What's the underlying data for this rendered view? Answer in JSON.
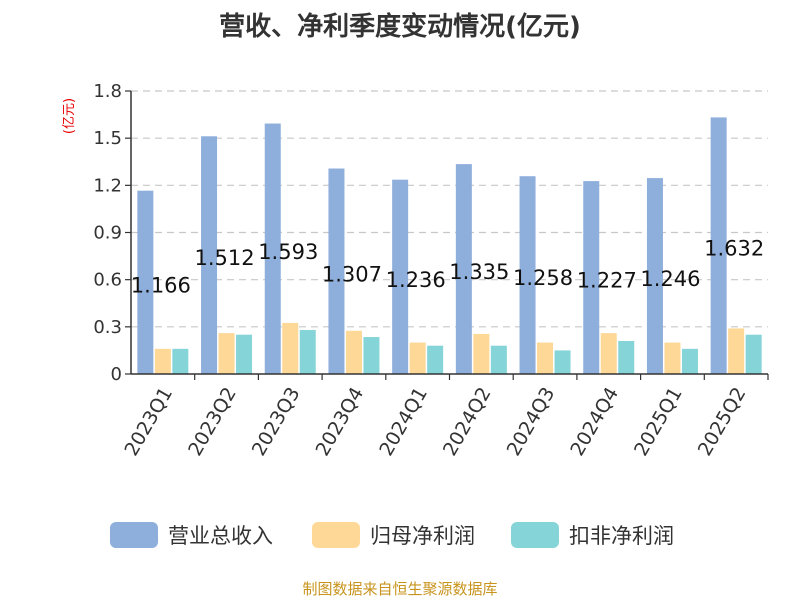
{
  "chart_data": {
    "type": "bar",
    "title": "营收、净利季度变动情况(亿元)",
    "unit_label": "(亿元)",
    "categories": [
      "2023Q1",
      "2023Q2",
      "2023Q3",
      "2023Q4",
      "2024Q1",
      "2024Q2",
      "2024Q3",
      "2024Q4",
      "2025Q1",
      "2025Q2"
    ],
    "series": [
      {
        "name": "营业总收入",
        "color": "#8eaedc",
        "values": [
          1.166,
          1.512,
          1.593,
          1.307,
          1.236,
          1.335,
          1.258,
          1.227,
          1.246,
          1.632
        ],
        "labels": [
          "1.166",
          "1.512",
          "1.593",
          "1.307",
          "1.236",
          "1.335",
          "1.258",
          "1.227",
          "1.246",
          "1.632"
        ]
      },
      {
        "name": "归母净利润",
        "color": "#fdd897",
        "values": [
          0.16,
          0.26,
          0.325,
          0.275,
          0.2,
          0.255,
          0.2,
          0.26,
          0.2,
          0.29
        ]
      },
      {
        "name": "扣非净利润",
        "color": "#85d4d7",
        "values": [
          0.16,
          0.25,
          0.28,
          0.235,
          0.18,
          0.18,
          0.15,
          0.21,
          0.16,
          0.25
        ]
      }
    ],
    "yticks": [
      "0",
      "0.3",
      "0.6",
      "0.9",
      "1.2",
      "1.5",
      "1.8"
    ],
    "ylim": [
      0,
      1.8
    ],
    "grid": true,
    "legend_position": "bottom"
  },
  "source": "制图数据来自恒生聚源数据库"
}
